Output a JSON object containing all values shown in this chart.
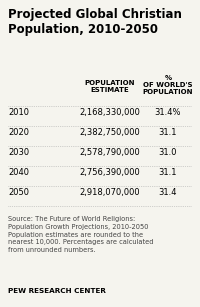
{
  "title": "Projected Global Christian\nPopulation, 2010-2050",
  "col1_header": "POPULATION\nESTIMATE",
  "col2_header": "%\nOF WORLD'S\nPOPULATION",
  "years": [
    "2010",
    "2020",
    "2030",
    "2040",
    "2050"
  ],
  "population": [
    "2,168,330,000",
    "2,382,750,000",
    "2,578,790,000",
    "2,756,390,000",
    "2,918,070,000"
  ],
  "pct": [
    "31.4%",
    "31.1",
    "31.0",
    "31.1",
    "31.4"
  ],
  "source_text": "Source: The Future of World Religions:\nPopulation Growth Projections, 2010-2050\nPopulation estimates are rounded to the\nnearest 10,000. Percentages are calculated\nfrom unrounded numbers.",
  "footer": "PEW RESEARCH CENTER",
  "bg_color": "#f5f4ee",
  "title_fontsize": 8.5,
  "header_fontsize": 5.0,
  "data_fontsize": 6.0,
  "source_fontsize": 4.8,
  "footer_fontsize": 5.2
}
